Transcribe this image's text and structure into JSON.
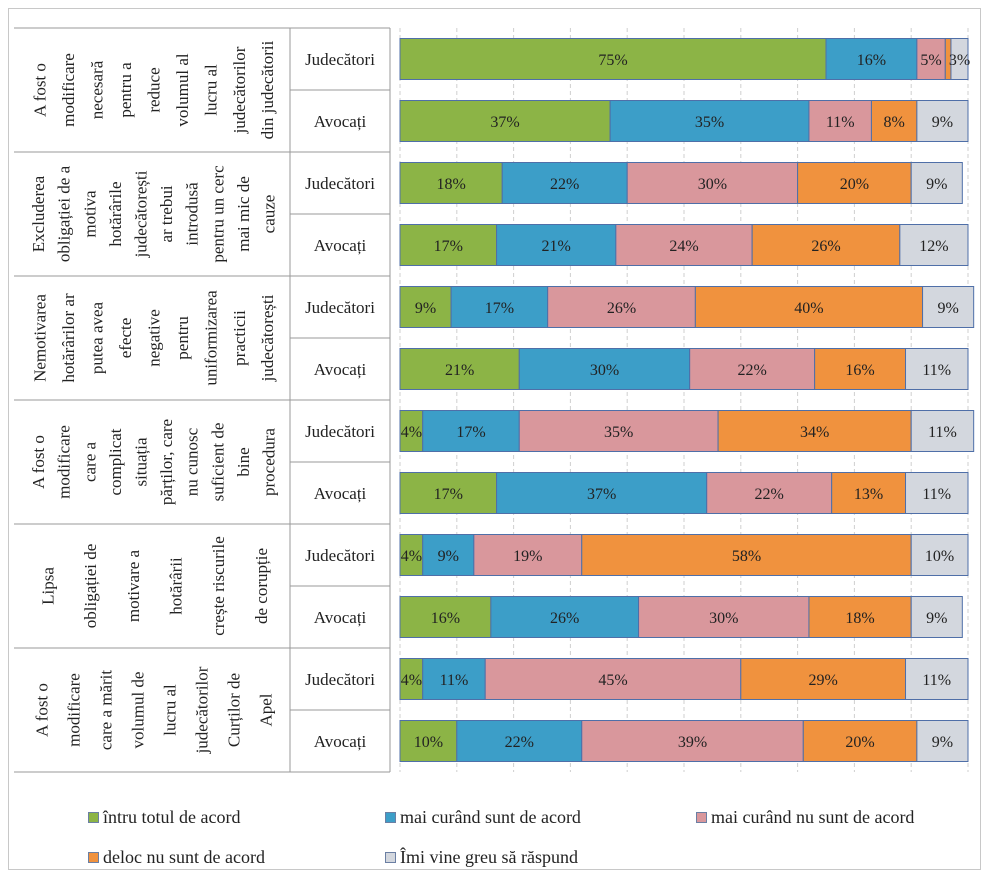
{
  "chart_data": {
    "type": "bar",
    "orientation": "horizontal",
    "stacked": "percent",
    "groups": [
      {
        "label": "A fost o modificare necesară pentru a reduce volumul al lucru al judecătorilor din judecătorii",
        "label_lines_left": [
          "A fost o",
          "modificare",
          "necesară",
          "pentru a",
          "reduce"
        ],
        "label_lines_right": [
          "volumul al",
          "lucru al",
          "judecătorilor",
          "din judecătorii"
        ],
        "rows": [
          {
            "respondent": "Judecători",
            "values": [
              75,
              16,
              5,
              1,
              3
            ],
            "labels": [
              "75%",
              "16%",
              "5%",
              "",
              "3%"
            ]
          },
          {
            "respondent": "Avocați",
            "values": [
              37,
              35,
              11,
              8,
              9
            ],
            "labels": [
              "37%",
              "35%",
              "11%",
              "8%",
              "9%"
            ]
          }
        ]
      },
      {
        "label": "Excluderea obligației de a motiva hotărârile judecătorești ar trebui introdusă pentru un cerc mai mic de cauze",
        "label_lines_left": [
          "Excluderea",
          "obligației de a",
          "motiva",
          "hotărârile",
          "judecătorești"
        ],
        "label_lines_right": [
          "ar trebui",
          "introdusă",
          "pentru un cerc",
          "mai mic de",
          "cauze"
        ],
        "rows": [
          {
            "respondent": "Judecători",
            "values": [
              18,
              22,
              30,
              20,
              9
            ],
            "labels": [
              "18%",
              "22%",
              "30%",
              "20%",
              "9%"
            ]
          },
          {
            "respondent": "Avocați",
            "values": [
              17,
              21,
              24,
              26,
              12
            ],
            "labels": [
              "17%",
              "21%",
              "24%",
              "26%",
              "12%"
            ]
          }
        ]
      },
      {
        "label": "Nemotivarea hotărârilor ar putea avea efecte negative pentru uniformizarea practicii judecătorești",
        "label_lines_left": [
          "Nemotivarea",
          "hotărârilor ar",
          "putea avea",
          "efecte",
          "negative"
        ],
        "label_lines_right": [
          "pentru",
          "uniformizarea",
          "practicii",
          "judecătorești"
        ],
        "rows": [
          {
            "respondent": "Judecători",
            "values": [
              9,
              17,
              26,
              40,
              9
            ],
            "labels": [
              "9%",
              "17%",
              "26%",
              "40%",
              "9%"
            ]
          },
          {
            "respondent": "Avocați",
            "values": [
              21,
              30,
              22,
              16,
              11
            ],
            "labels": [
              "21%",
              "30%",
              "22%",
              "16%",
              "11%"
            ]
          }
        ]
      },
      {
        "label": "A fost o modificare care a complicat situația părților, care nu cunosc suficient de bine procedura",
        "label_lines_left": [
          "A fost o",
          "modificare",
          "care a",
          "complicat",
          "situația"
        ],
        "label_lines_right": [
          "părților, care",
          "nu cunosc",
          "suficient de",
          "bine",
          "procedura"
        ],
        "rows": [
          {
            "respondent": "Judecători",
            "values": [
              4,
              17,
              35,
              34,
              11
            ],
            "labels": [
              "4%",
              "17%",
              "35%",
              "34%",
              "11%"
            ]
          },
          {
            "respondent": "Avocați",
            "values": [
              17,
              37,
              22,
              13,
              11
            ],
            "labels": [
              "17%",
              "37%",
              "22%",
              "13%",
              "11%"
            ]
          }
        ]
      },
      {
        "label": "Lipsa obligației de motivare a hotărârii crește riscurile de corupție",
        "label_lines_left": [
          "Lipsa",
          "obligației de",
          "motivare a"
        ],
        "label_lines_right": [
          "hotărârii",
          "crește riscurile",
          "de corupție"
        ],
        "rows": [
          {
            "respondent": "Judecători",
            "values": [
              4,
              9,
              19,
              58,
              10
            ],
            "labels": [
              "4%",
              "9%",
              "19%",
              "58%",
              "10%"
            ]
          },
          {
            "respondent": "Avocați",
            "values": [
              16,
              26,
              30,
              18,
              9
            ],
            "labels": [
              "16%",
              "26%",
              "30%",
              "18%",
              "9%"
            ]
          }
        ]
      },
      {
        "label": "A fost o modificare care a mărit volumul de lucru al judecătorilor Curților de Apel",
        "label_lines_left": [
          "A fost o",
          "modificare",
          "care a mărit",
          "volumul de",
          "lucru al"
        ],
        "label_lines_right": [
          "judecătorilor",
          "Curților de",
          "Apel"
        ],
        "rows": [
          {
            "respondent": "Judecători",
            "values": [
              4,
              11,
              45,
              29,
              11
            ],
            "labels": [
              "4%",
              "11%",
              "45%",
              "29%",
              "11%"
            ]
          },
          {
            "respondent": "Avocați",
            "values": [
              10,
              22,
              39,
              20,
              9
            ],
            "labels": [
              "10%",
              "22%",
              "39%",
              "20%",
              "9%"
            ]
          }
        ]
      }
    ],
    "series": [
      {
        "name": "întru totul de acord",
        "color": "#8cb446"
      },
      {
        "name": "mai curând sunt de acord",
        "color": "#3c9ec8"
      },
      {
        "name": "mai curând nu sunt de acord",
        "color": "#d9979c"
      },
      {
        "name": "deloc nu sunt de acord",
        "color": "#f0923e"
      },
      {
        "name": "Îmi vine greu să răspund",
        "color": "#d3d7de"
      }
    ],
    "xlim": [
      0,
      100
    ],
    "grid": "vertical dashed",
    "legend_position": "bottom"
  }
}
